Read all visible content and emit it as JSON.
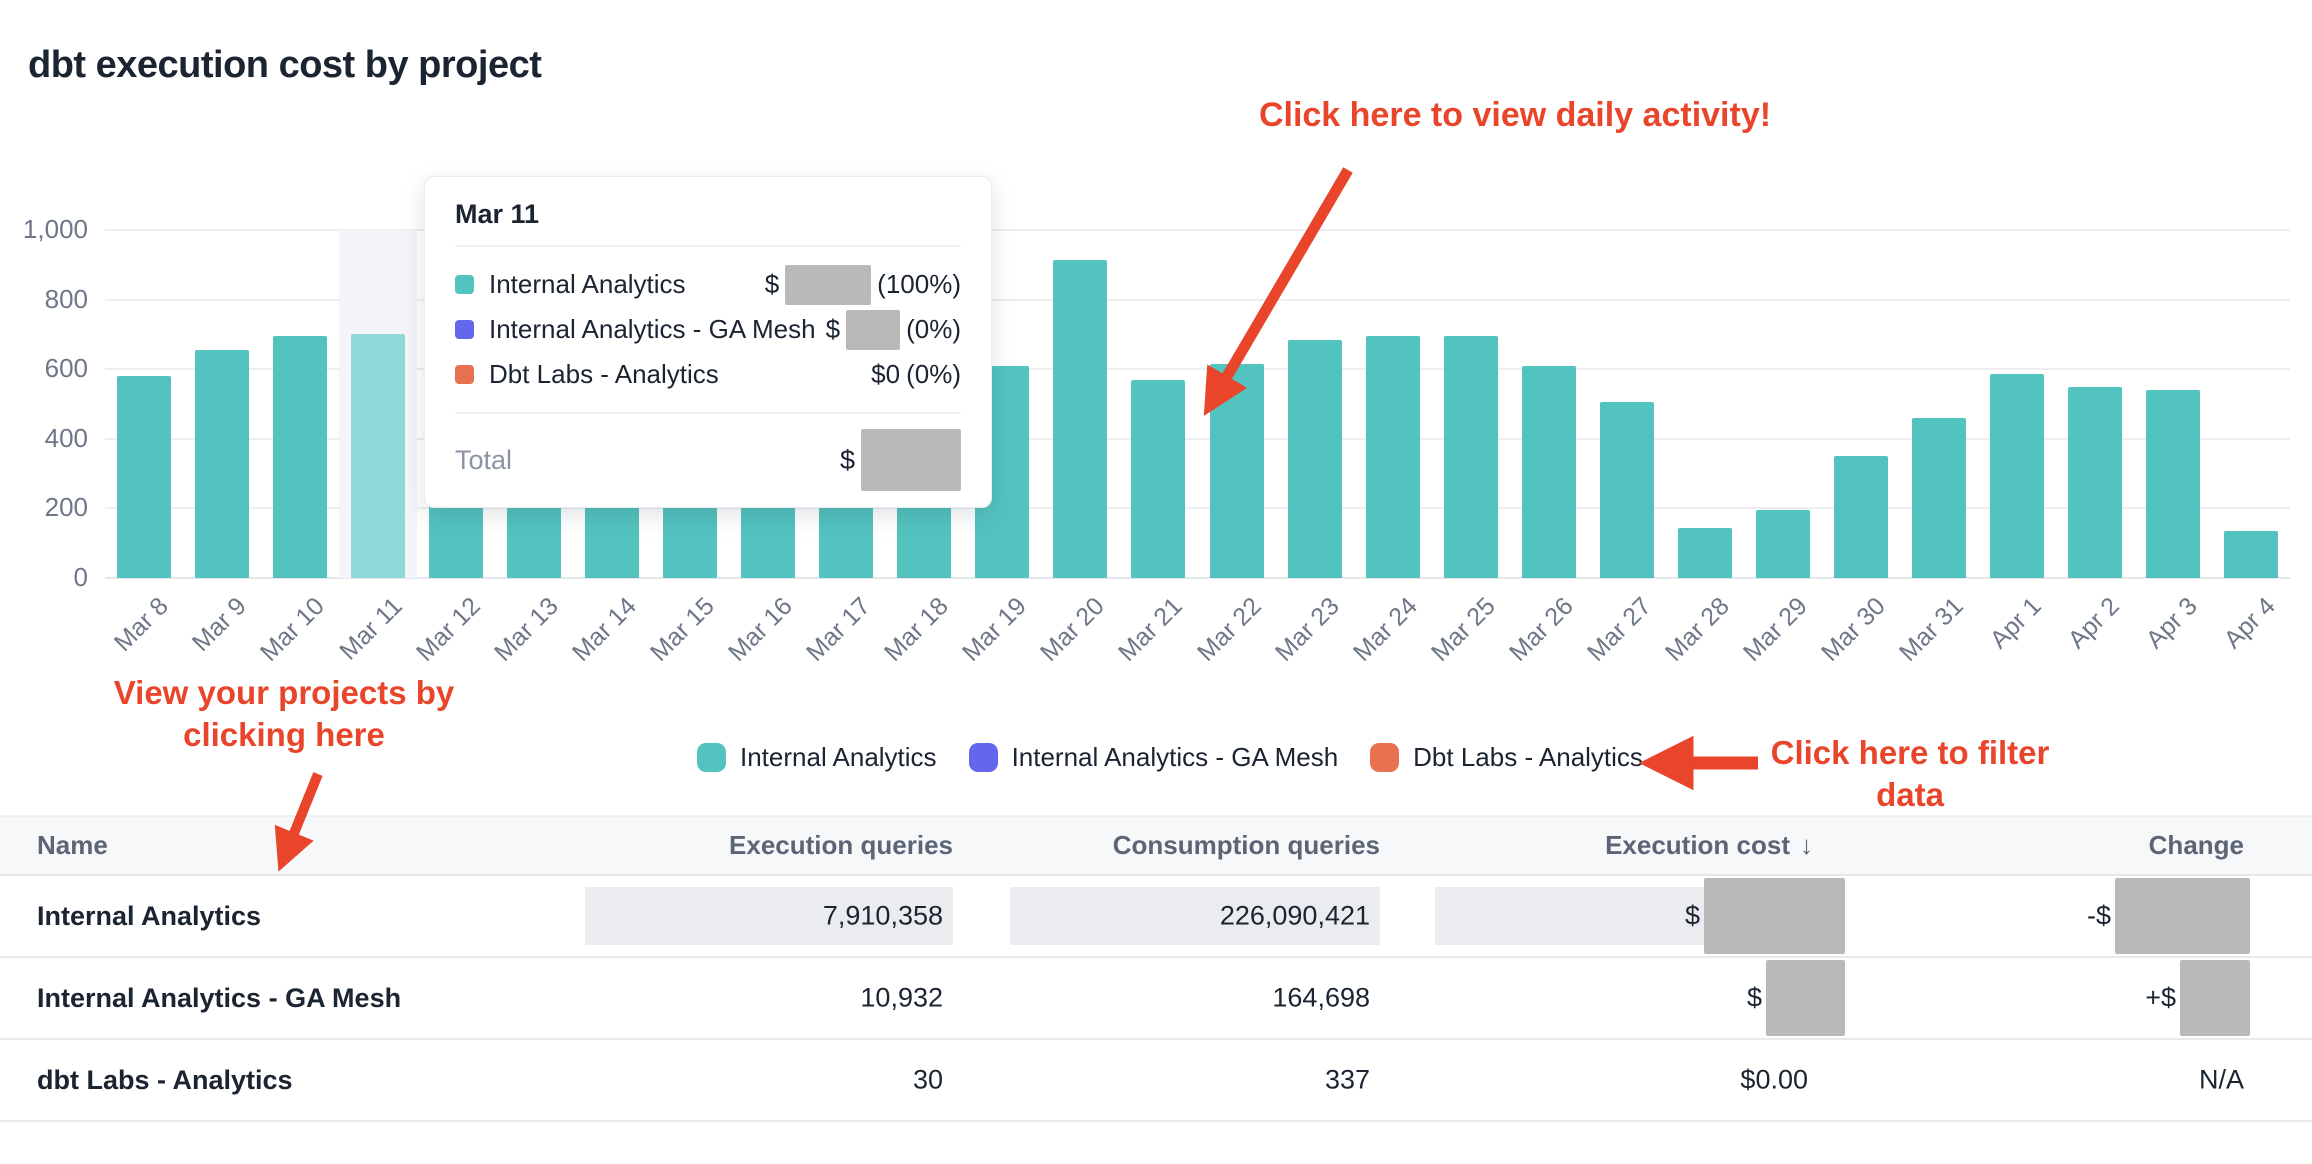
{
  "title": "dbt execution cost by project",
  "palette": {
    "bar_teal": "#53c3bf",
    "bar_highlight": "#8ed9d7",
    "series_purple": "#6466ec",
    "series_orange": "#e8724f",
    "annotation_red": "#e8452b",
    "change_negative_green": "#1c7c4d",
    "change_positive_red": "#c13a2a",
    "redaction_gray": "#b9b9b9"
  },
  "chart_data": {
    "type": "bar",
    "title": "dbt execution cost by project",
    "xlabel": "",
    "ylabel": "",
    "ylim": [
      0,
      1000
    ],
    "y_ticks": [
      0,
      200,
      400,
      600,
      800,
      1000
    ],
    "grid": true,
    "legend_position": "bottom",
    "series_name": "Internal Analytics",
    "highlighted_category": "Mar 11",
    "categories": [
      "Mar 8",
      "Mar 9",
      "Mar 10",
      "Mar 11",
      "Mar 12",
      "Mar 13",
      "Mar 14",
      "Mar 15",
      "Mar 16",
      "Mar 17",
      "Mar 18",
      "Mar 19",
      "Mar 20",
      "Mar 21",
      "Mar 22",
      "Mar 23",
      "Mar 24",
      "Mar 25",
      "Mar 26",
      "Mar 27",
      "Mar 28",
      "Mar 29",
      "Mar 30",
      "Mar 31",
      "Apr 1",
      "Apr 2",
      "Apr 3",
      "Apr 4"
    ],
    "values": [
      580,
      655,
      695,
      700,
      295,
      295,
      295,
      295,
      295,
      295,
      295,
      610,
      915,
      570,
      615,
      685,
      695,
      695,
      610,
      505,
      145,
      195,
      350,
      460,
      585,
      550,
      540,
      135
    ]
  },
  "tooltip": {
    "date": "Mar 11",
    "rows": [
      {
        "label": "Internal Analytics",
        "color": "#53c3bf",
        "value_prefix": "$",
        "redacted": true,
        "redact_w": 86,
        "value_suffix": "(100%)"
      },
      {
        "label": "Internal Analytics - GA Mesh",
        "color": "#6466ec",
        "value_prefix": "$",
        "redacted": true,
        "redact_w": 54,
        "value_suffix": "(0%)"
      },
      {
        "label": "Dbt Labs - Analytics",
        "color": "#e8724f",
        "value_prefix": "$0",
        "redacted": false,
        "redact_w": 0,
        "value_suffix": "(0%)"
      }
    ],
    "total_label": "Total",
    "total_prefix": "$",
    "total_redacted": true
  },
  "legend": {
    "items": [
      {
        "label": "Internal Analytics",
        "color": "#53c3bf"
      },
      {
        "label": "Internal Analytics - GA Mesh",
        "color": "#6466ec"
      },
      {
        "label": "Dbt Labs - Analytics",
        "color": "#e8724f"
      }
    ]
  },
  "annotations": {
    "daily_activity": "Click here to view daily activity!",
    "projects_line1": "View your projects by",
    "projects_line2": "clicking here",
    "filter_line1": "Click here to filter",
    "filter_line2": "data"
  },
  "table": {
    "header": {
      "name": "Name",
      "execution_queries": "Execution queries",
      "consumption_queries": "Consumption queries",
      "execution_cost": "Execution cost",
      "sort_icon": "↓",
      "change": "Change"
    },
    "rows": [
      {
        "name": "Internal Analytics",
        "execution_queries": "7,910,358",
        "eq_highlight": true,
        "consumption_queries": "226,090,421",
        "cq_highlight": true,
        "cost_text": "$",
        "cost_highlight": true,
        "cost_redact_w": 141,
        "change_text": "-$",
        "change_class": "neg",
        "change_redact_w": 135
      },
      {
        "name": "Internal Analytics - GA Mesh",
        "execution_queries": "10,932",
        "eq_highlight": false,
        "consumption_queries": "164,698",
        "cq_highlight": false,
        "cost_text": "$",
        "cost_highlight": false,
        "cost_redact_w": 79,
        "change_text": "+$",
        "change_class": "pos",
        "change_redact_w": 70
      },
      {
        "name": "dbt Labs - Analytics",
        "execution_queries": "30",
        "eq_highlight": false,
        "consumption_queries": "337",
        "cq_highlight": false,
        "cost_text": "$0.00",
        "cost_highlight": false,
        "cost_redact_w": 0,
        "change_text": "N/A",
        "change_class": "na",
        "change_redact_w": 0
      }
    ]
  }
}
